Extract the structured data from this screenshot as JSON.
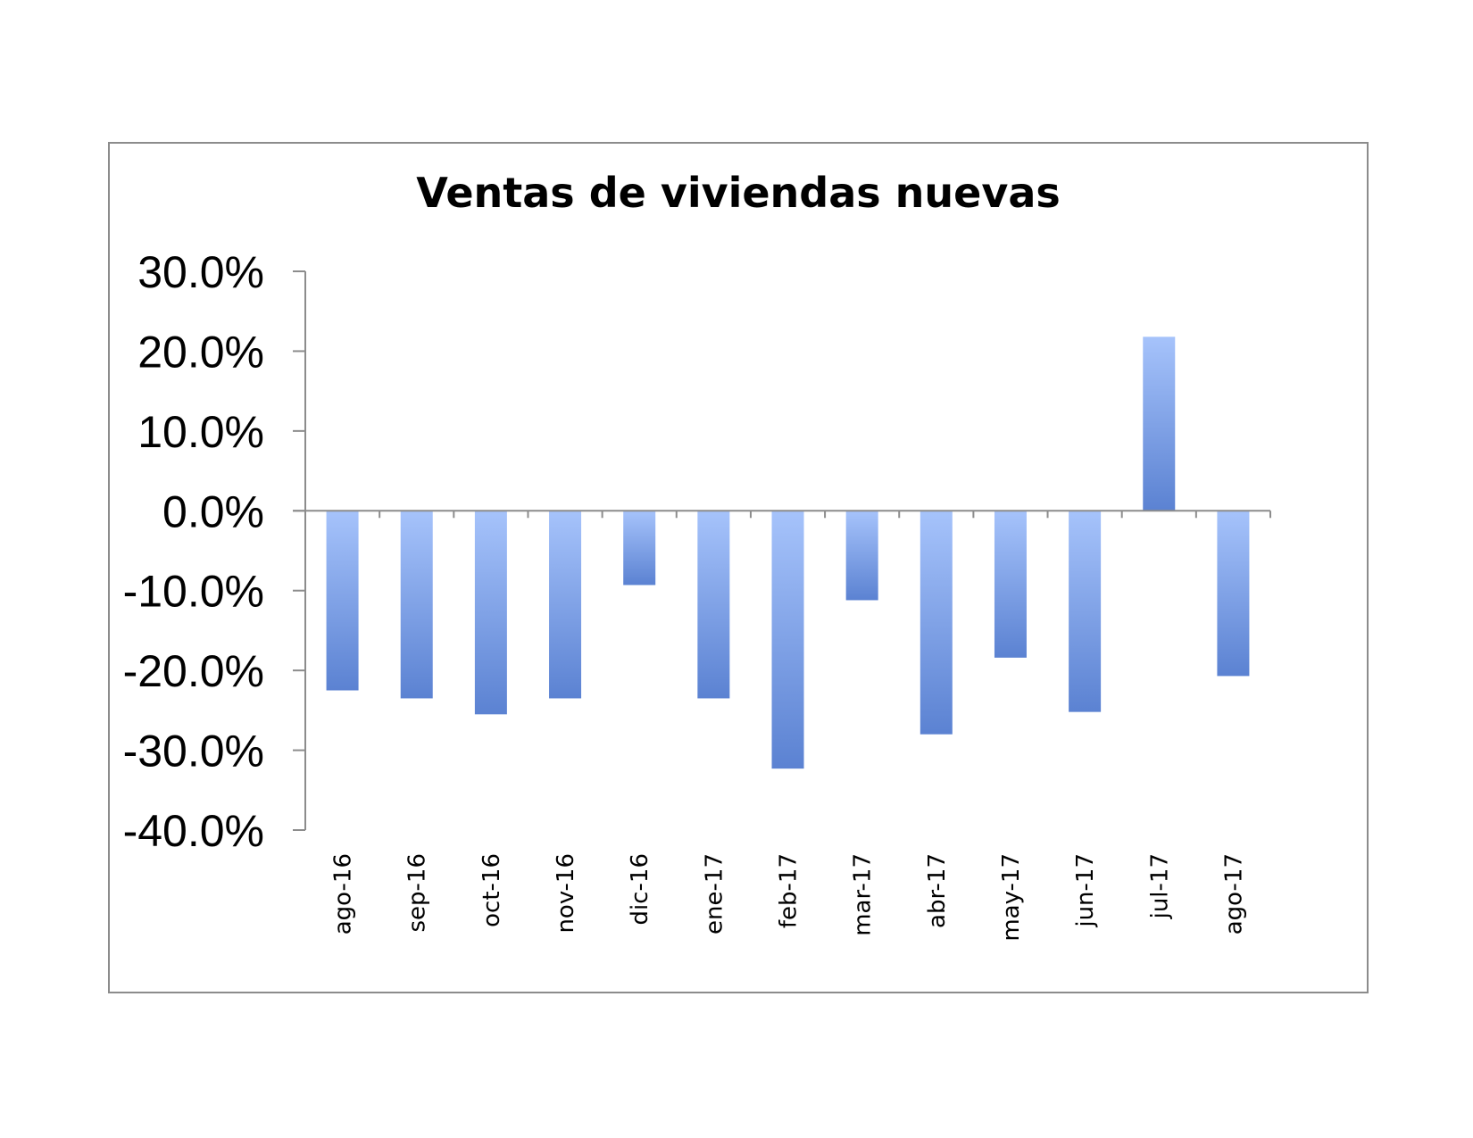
{
  "chart_data": {
    "type": "bar",
    "title": "Ventas de viviendas nuevas",
    "categories": [
      "ago-16",
      "sep-16",
      "oct-16",
      "nov-16",
      "dic-16",
      "ene-17",
      "feb-17",
      "mar-17",
      "abr-17",
      "may-17",
      "jun-17",
      "jul-17",
      "ago-17"
    ],
    "values": [
      -22.5,
      -23.5,
      -25.5,
      -23.5,
      -9.3,
      -23.5,
      -32.3,
      -11.2,
      -28.0,
      -18.4,
      -25.2,
      21.8,
      -20.7
    ],
    "ylim": [
      -40,
      30
    ],
    "yticks": [
      30,
      20,
      10,
      0,
      -10,
      -20,
      -30,
      -40
    ],
    "ytick_labels": [
      "30.0%",
      "20.0%",
      "10.0%",
      "0.0%",
      "-10.0%",
      "-20.0%",
      "-30.0%",
      "-40.0%"
    ],
    "xlabel": "",
    "ylabel": "",
    "grid": false,
    "legend": "none",
    "colors": {
      "bar_light": "#a6c3fb",
      "bar_dark": "#5b82d2",
      "axis": "#8c8c8c"
    }
  }
}
